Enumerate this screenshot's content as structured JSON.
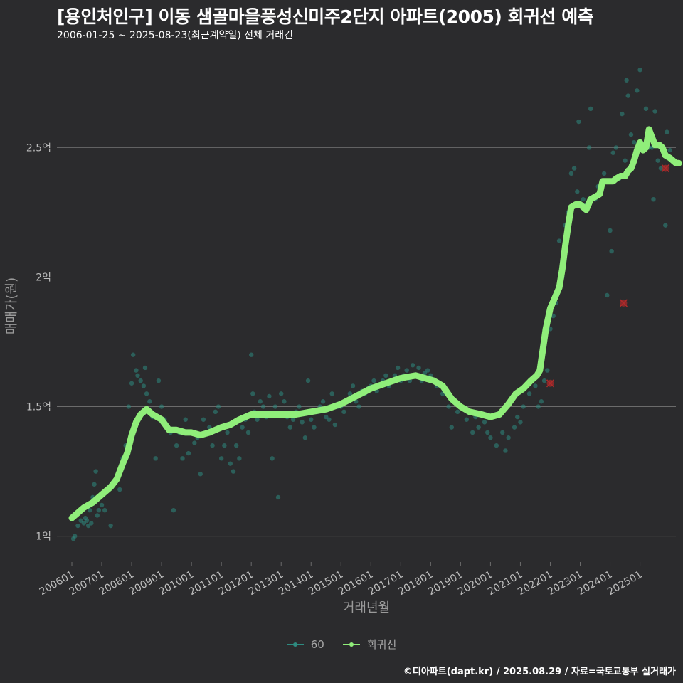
{
  "header": {
    "title": "[용인처인구] 이동 샘골마을풍성신미주2단지 아파트(2005) 회귀선 예측",
    "subtitle": "2006-01-25 ~ 2025-08-23(최근계약일) 전체 거래건"
  },
  "footer": {
    "credit": "©디아파트(dapt.kr) / 2025.08.29 / 자료=국토교통부 실거래가"
  },
  "colors": {
    "background": "#2b2b2d",
    "scatter": "#2e8b80",
    "regression": "#90ee7a",
    "outlier": "#b02a2a",
    "grid": "#6b6b6b",
    "tick_text": "#bdbdbd",
    "axis_title": "#9a9a9a"
  },
  "chart_data": {
    "type": "scatter",
    "xlabel": "거래년월",
    "ylabel": "매매가(원)",
    "xlim": [
      2005.5,
      2026.2
    ],
    "ylim": [
      0.9,
      2.85
    ],
    "x_ticks": [
      "200601",
      "200701",
      "200801",
      "200901",
      "201001",
      "201101",
      "201201",
      "201301",
      "201401",
      "201501",
      "201601",
      "201701",
      "201801",
      "201901",
      "202001",
      "202101",
      "202201",
      "202301",
      "202401",
      "202501"
    ],
    "y_ticks": [
      {
        "value": 1.0,
        "label": "1억"
      },
      {
        "value": 1.5,
        "label": "1.5억"
      },
      {
        "value": 2.0,
        "label": "2억"
      },
      {
        "value": 2.5,
        "label": "2.5억"
      }
    ],
    "grid": true,
    "legend": {
      "position": "bottom",
      "entries": [
        "60",
        "회귀선"
      ]
    },
    "series": [
      {
        "name": "60",
        "kind": "scatter",
        "points": [
          [
            2006.05,
            0.99
          ],
          [
            2006.1,
            1.0
          ],
          [
            2006.2,
            1.04
          ],
          [
            2006.3,
            1.06
          ],
          [
            2006.4,
            1.05
          ],
          [
            2006.45,
            1.07
          ],
          [
            2006.5,
            1.06
          ],
          [
            2006.55,
            1.04
          ],
          [
            2006.6,
            1.1
          ],
          [
            2006.65,
            1.05
          ],
          [
            2006.7,
            1.15
          ],
          [
            2006.75,
            1.2
          ],
          [
            2006.8,
            1.25
          ],
          [
            2006.85,
            1.08
          ],
          [
            2006.9,
            1.1
          ],
          [
            2007.0,
            1.12
          ],
          [
            2007.1,
            1.1
          ],
          [
            2007.2,
            1.18
          ],
          [
            2007.3,
            1.04
          ],
          [
            2007.4,
            1.2
          ],
          [
            2007.5,
            1.22
          ],
          [
            2007.6,
            1.18
          ],
          [
            2007.7,
            1.3
          ],
          [
            2007.8,
            1.35
          ],
          [
            2007.9,
            1.5
          ],
          [
            2008.0,
            1.59
          ],
          [
            2008.05,
            1.7
          ],
          [
            2008.15,
            1.64
          ],
          [
            2008.2,
            1.62
          ],
          [
            2008.3,
            1.6
          ],
          [
            2008.4,
            1.58
          ],
          [
            2008.45,
            1.65
          ],
          [
            2008.5,
            1.55
          ],
          [
            2008.6,
            1.52
          ],
          [
            2008.7,
            1.46
          ],
          [
            2008.8,
            1.3
          ],
          [
            2008.9,
            1.6
          ],
          [
            2009.0,
            1.5
          ],
          [
            2009.1,
            1.45
          ],
          [
            2009.2,
            1.42
          ],
          [
            2009.3,
            1.4
          ],
          [
            2009.4,
            1.1
          ],
          [
            2009.5,
            1.35
          ],
          [
            2009.6,
            1.4
          ],
          [
            2009.7,
            1.3
          ],
          [
            2009.8,
            1.45
          ],
          [
            2009.9,
            1.32
          ],
          [
            2010.0,
            1.4
          ],
          [
            2010.1,
            1.36
          ],
          [
            2010.2,
            1.38
          ],
          [
            2010.3,
            1.24
          ],
          [
            2010.4,
            1.45
          ],
          [
            2010.5,
            1.4
          ],
          [
            2010.6,
            1.42
          ],
          [
            2010.7,
            1.35
          ],
          [
            2010.8,
            1.48
          ],
          [
            2010.9,
            1.5
          ],
          [
            2011.0,
            1.3
          ],
          [
            2011.1,
            1.35
          ],
          [
            2011.2,
            1.4
          ],
          [
            2011.3,
            1.28
          ],
          [
            2011.4,
            1.25
          ],
          [
            2011.5,
            1.35
          ],
          [
            2011.6,
            1.3
          ],
          [
            2011.7,
            1.42
          ],
          [
            2011.8,
            1.45
          ],
          [
            2011.9,
            1.4
          ],
          [
            2012.0,
            1.7
          ],
          [
            2012.05,
            1.55
          ],
          [
            2012.1,
            1.48
          ],
          [
            2012.2,
            1.45
          ],
          [
            2012.3,
            1.52
          ],
          [
            2012.4,
            1.5
          ],
          [
            2012.5,
            1.46
          ],
          [
            2012.6,
            1.54
          ],
          [
            2012.7,
            1.3
          ],
          [
            2012.8,
            1.5
          ],
          [
            2012.9,
            1.15
          ],
          [
            2013.0,
            1.55
          ],
          [
            2013.1,
            1.52
          ],
          [
            2013.2,
            1.46
          ],
          [
            2013.3,
            1.42
          ],
          [
            2013.4,
            1.45
          ],
          [
            2013.5,
            1.48
          ],
          [
            2013.6,
            1.5
          ],
          [
            2013.7,
            1.44
          ],
          [
            2013.8,
            1.38
          ],
          [
            2013.9,
            1.6
          ],
          [
            2014.0,
            1.45
          ],
          [
            2014.1,
            1.42
          ],
          [
            2014.2,
            1.48
          ],
          [
            2014.3,
            1.5
          ],
          [
            2014.4,
            1.52
          ],
          [
            2014.5,
            1.46
          ],
          [
            2014.6,
            1.45
          ],
          [
            2014.7,
            1.55
          ],
          [
            2014.8,
            1.43
          ],
          [
            2014.9,
            1.5
          ],
          [
            2015.0,
            1.5
          ],
          [
            2015.1,
            1.48
          ],
          [
            2015.2,
            1.52
          ],
          [
            2015.3,
            1.55
          ],
          [
            2015.4,
            1.58
          ],
          [
            2015.5,
            1.52
          ],
          [
            2015.6,
            1.5
          ],
          [
            2015.7,
            1.56
          ],
          [
            2015.8,
            1.55
          ],
          [
            2015.9,
            1.57
          ],
          [
            2016.0,
            1.58
          ],
          [
            2016.1,
            1.6
          ],
          [
            2016.2,
            1.56
          ],
          [
            2016.3,
            1.58
          ],
          [
            2016.4,
            1.6
          ],
          [
            2016.5,
            1.62
          ],
          [
            2016.6,
            1.58
          ],
          [
            2016.7,
            1.6
          ],
          [
            2016.8,
            1.62
          ],
          [
            2016.9,
            1.65
          ],
          [
            2017.0,
            1.6
          ],
          [
            2017.1,
            1.62
          ],
          [
            2017.2,
            1.64
          ],
          [
            2017.3,
            1.6
          ],
          [
            2017.4,
            1.66
          ],
          [
            2017.5,
            1.62
          ],
          [
            2017.6,
            1.65
          ],
          [
            2017.7,
            1.6
          ],
          [
            2017.8,
            1.63
          ],
          [
            2017.9,
            1.64
          ],
          [
            2018.0,
            1.62
          ],
          [
            2018.2,
            1.58
          ],
          [
            2018.4,
            1.55
          ],
          [
            2018.6,
            1.5
          ],
          [
            2018.7,
            1.42
          ],
          [
            2018.9,
            1.48
          ],
          [
            2019.0,
            1.5
          ],
          [
            2019.2,
            1.45
          ],
          [
            2019.4,
            1.4
          ],
          [
            2019.5,
            1.46
          ],
          [
            2019.6,
            1.42
          ],
          [
            2019.8,
            1.44
          ],
          [
            2019.9,
            1.4
          ],
          [
            2020.0,
            1.38
          ],
          [
            2020.2,
            1.35
          ],
          [
            2020.4,
            1.4
          ],
          [
            2020.5,
            1.33
          ],
          [
            2020.6,
            1.38
          ],
          [
            2020.8,
            1.42
          ],
          [
            2020.9,
            1.46
          ],
          [
            2021.0,
            1.44
          ],
          [
            2021.1,
            1.5
          ],
          [
            2021.3,
            1.55
          ],
          [
            2021.4,
            1.6
          ],
          [
            2021.5,
            1.58
          ],
          [
            2021.6,
            1.5
          ],
          [
            2021.7,
            1.52
          ],
          [
            2021.8,
            1.6
          ],
          [
            2021.9,
            1.64
          ],
          [
            2022.0,
            1.8
          ],
          [
            2022.1,
            1.85
          ],
          [
            2022.2,
            1.9
          ],
          [
            2022.3,
            2.14
          ],
          [
            2022.4,
            2.0
          ],
          [
            2022.5,
            2.2
          ],
          [
            2022.6,
            2.25
          ],
          [
            2022.7,
            2.4
          ],
          [
            2022.8,
            2.42
          ],
          [
            2022.9,
            2.33
          ],
          [
            2022.95,
            2.6
          ],
          [
            2023.1,
            2.3
          ],
          [
            2023.2,
            2.28
          ],
          [
            2023.3,
            2.5
          ],
          [
            2023.35,
            2.65
          ],
          [
            2023.5,
            2.3
          ],
          [
            2023.6,
            2.35
          ],
          [
            2023.7,
            2.33
          ],
          [
            2023.8,
            2.4
          ],
          [
            2023.9,
            1.93
          ],
          [
            2024.0,
            2.18
          ],
          [
            2024.05,
            2.1
          ],
          [
            2024.1,
            2.48
          ],
          [
            2024.2,
            2.5
          ],
          [
            2024.3,
            2.38
          ],
          [
            2024.4,
            2.63
          ],
          [
            2024.5,
            2.45
          ],
          [
            2024.55,
            2.76
          ],
          [
            2024.6,
            2.7
          ],
          [
            2024.7,
            2.55
          ],
          [
            2024.8,
            2.52
          ],
          [
            2024.9,
            2.72
          ],
          [
            2025.0,
            2.8
          ],
          [
            2025.1,
            2.5
          ],
          [
            2025.2,
            2.65
          ],
          [
            2025.3,
            2.5
          ],
          [
            2025.4,
            2.5
          ],
          [
            2025.45,
            2.3
          ],
          [
            2025.5,
            2.64
          ],
          [
            2025.6,
            2.45
          ],
          [
            2025.7,
            2.42
          ],
          [
            2025.8,
            2.47
          ],
          [
            2025.85,
            2.2
          ],
          [
            2025.9,
            2.56
          ],
          [
            2026.0,
            2.49
          ]
        ]
      },
      {
        "name": "회귀선",
        "kind": "line",
        "points": [
          [
            2006.0,
            1.07
          ],
          [
            2006.2,
            1.09
          ],
          [
            2006.4,
            1.11
          ],
          [
            2006.7,
            1.13
          ],
          [
            2007.0,
            1.16
          ],
          [
            2007.3,
            1.19
          ],
          [
            2007.5,
            1.22
          ],
          [
            2007.7,
            1.28
          ],
          [
            2007.85,
            1.32
          ],
          [
            2008.0,
            1.39
          ],
          [
            2008.15,
            1.44
          ],
          [
            2008.3,
            1.47
          ],
          [
            2008.5,
            1.49
          ],
          [
            2008.7,
            1.47
          ],
          [
            2009.0,
            1.45
          ],
          [
            2009.25,
            1.41
          ],
          [
            2009.5,
            1.41
          ],
          [
            2009.8,
            1.4
          ],
          [
            2010.0,
            1.4
          ],
          [
            2010.3,
            1.39
          ],
          [
            2010.6,
            1.4
          ],
          [
            2011.0,
            1.42
          ],
          [
            2011.3,
            1.43
          ],
          [
            2011.6,
            1.45
          ],
          [
            2012.0,
            1.47
          ],
          [
            2012.5,
            1.47
          ],
          [
            2013.0,
            1.47
          ],
          [
            2013.5,
            1.47
          ],
          [
            2014.0,
            1.48
          ],
          [
            2014.5,
            1.49
          ],
          [
            2015.0,
            1.51
          ],
          [
            2015.5,
            1.54
          ],
          [
            2016.0,
            1.57
          ],
          [
            2016.5,
            1.59
          ],
          [
            2017.0,
            1.61
          ],
          [
            2017.5,
            1.62
          ],
          [
            2017.8,
            1.61
          ],
          [
            2018.1,
            1.6
          ],
          [
            2018.4,
            1.58
          ],
          [
            2018.7,
            1.53
          ],
          [
            2019.0,
            1.5
          ],
          [
            2019.3,
            1.48
          ],
          [
            2019.7,
            1.47
          ],
          [
            2020.0,
            1.46
          ],
          [
            2020.3,
            1.47
          ],
          [
            2020.6,
            1.51
          ],
          [
            2020.85,
            1.55
          ],
          [
            2021.1,
            1.57
          ],
          [
            2021.35,
            1.6
          ],
          [
            2021.55,
            1.62
          ],
          [
            2021.65,
            1.64
          ],
          [
            2021.75,
            1.72
          ],
          [
            2021.85,
            1.8
          ],
          [
            2022.0,
            1.88
          ],
          [
            2022.15,
            1.92
          ],
          [
            2022.3,
            1.96
          ],
          [
            2022.4,
            2.03
          ],
          [
            2022.5,
            2.12
          ],
          [
            2022.6,
            2.2
          ],
          [
            2022.7,
            2.27
          ],
          [
            2022.85,
            2.28
          ],
          [
            2023.0,
            2.28
          ],
          [
            2023.2,
            2.26
          ],
          [
            2023.35,
            2.3
          ],
          [
            2023.5,
            2.31
          ],
          [
            2023.65,
            2.32
          ],
          [
            2023.75,
            2.37
          ],
          [
            2023.95,
            2.37
          ],
          [
            2024.1,
            2.37
          ],
          [
            2024.2,
            2.38
          ],
          [
            2024.35,
            2.39
          ],
          [
            2024.5,
            2.39
          ],
          [
            2024.6,
            2.41
          ],
          [
            2024.7,
            2.42
          ],
          [
            2024.8,
            2.45
          ],
          [
            2024.9,
            2.49
          ],
          [
            2025.0,
            2.52
          ],
          [
            2025.1,
            2.49
          ],
          [
            2025.2,
            2.5
          ],
          [
            2025.3,
            2.57
          ],
          [
            2025.4,
            2.54
          ],
          [
            2025.5,
            2.51
          ],
          [
            2025.65,
            2.51
          ],
          [
            2025.75,
            2.5
          ],
          [
            2025.85,
            2.47
          ],
          [
            2026.0,
            2.46
          ],
          [
            2026.1,
            2.45
          ],
          [
            2026.2,
            2.44
          ],
          [
            2026.3,
            2.44
          ]
        ]
      },
      {
        "name": "outliers",
        "kind": "marker",
        "points": [
          [
            2024.45,
            1.9
          ],
          [
            2025.85,
            2.42
          ],
          [
            2022.0,
            1.59
          ]
        ]
      }
    ]
  }
}
